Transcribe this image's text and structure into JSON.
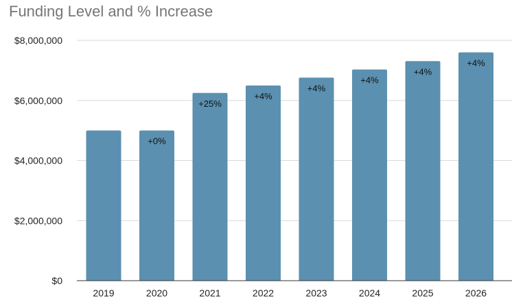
{
  "chart_data": {
    "type": "bar",
    "title": "Funding Level and % Increase",
    "xlabel": "",
    "ylabel": "",
    "categories": [
      "2019",
      "2020",
      "2021",
      "2022",
      "2023",
      "2024",
      "2025",
      "2026"
    ],
    "values": [
      5000000,
      5000000,
      6250000,
      6500000,
      6760000,
      7030000,
      7310000,
      7600000
    ],
    "data_labels": [
      "",
      "+0%",
      "+25%",
      "+4%",
      "+4%",
      "+4%",
      "+4%",
      "+4%"
    ],
    "ylim": [
      0,
      8000000
    ],
    "yticks": [
      0,
      2000000,
      4000000,
      6000000,
      8000000
    ],
    "ytick_labels": [
      "$0",
      "$2,000,000",
      "$4,000,000",
      "$6,000,000",
      "$8,000,000"
    ],
    "grid": true,
    "legend": "none",
    "colors": {
      "bar": "#5b90b0",
      "grid": "#d9d9d9",
      "axis": "#333333",
      "title": "#757575"
    }
  }
}
